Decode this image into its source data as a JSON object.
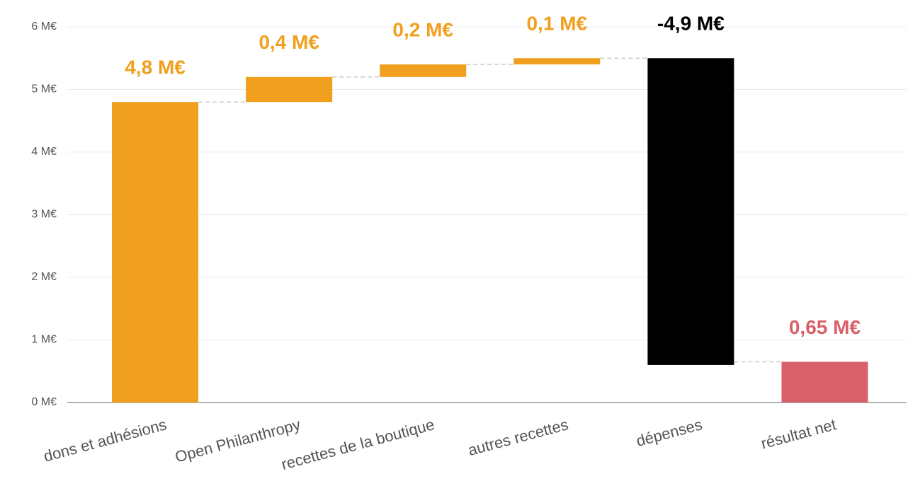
{
  "chart_data": {
    "type": "waterfall",
    "categories": [
      "dons et adhésions",
      "Open Philanthropy",
      "recettes de la boutique",
      "autres recettes",
      "dépenses",
      "résultat net"
    ],
    "values": [
      4.8,
      0.4,
      0.2,
      0.1,
      -4.9,
      0.65
    ],
    "value_labels": [
      "4,8 M€",
      "0,4 M€",
      "0,2 M€",
      "0,1 M€",
      "-4,9 M€",
      "0,65 M€"
    ],
    "is_total": [
      false,
      false,
      false,
      false,
      false,
      true
    ],
    "colors": [
      "#f0a01e",
      "#f0a01e",
      "#f0a01e",
      "#f0a01e",
      "#000000",
      "#d9606a"
    ],
    "ylim": [
      0,
      6
    ],
    "yticks": [
      {
        "value": 0,
        "label": "0 M€"
      },
      {
        "value": 1,
        "label": "1 M€"
      },
      {
        "value": 2,
        "label": "2 M€"
      },
      {
        "value": 3,
        "label": "3 M€"
      },
      {
        "value": 4,
        "label": "4 M€"
      },
      {
        "value": 5,
        "label": "5 M€"
      },
      {
        "value": 6,
        "label": "6 M€"
      }
    ],
    "grid": true
  }
}
